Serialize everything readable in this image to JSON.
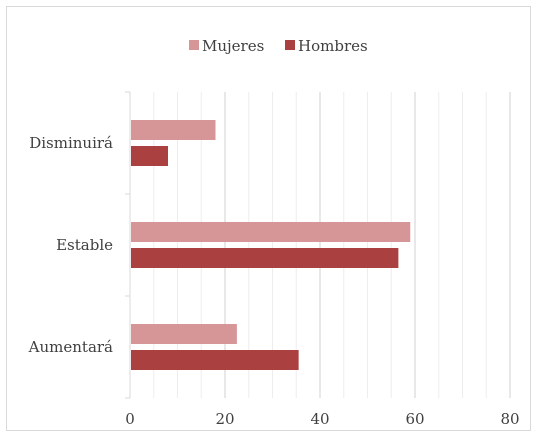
{
  "chart_data": {
    "type": "bar",
    "orientation": "horizontal",
    "categories": [
      "Disminuirá",
      "Estable",
      "Aumentará"
    ],
    "series": [
      {
        "name": "Mujeres",
        "color": "#d69597",
        "values": [
          18,
          59,
          22.5
        ]
      },
      {
        "name": "Hombres",
        "color": "#ab4040",
        "values": [
          8,
          56.5,
          35.5
        ]
      }
    ],
    "x_ticks": [
      0,
      20,
      40,
      60,
      80
    ],
    "xlim": [
      0,
      80
    ],
    "minor_gridlines_every": 4,
    "grid": true,
    "legend_position": "top"
  }
}
